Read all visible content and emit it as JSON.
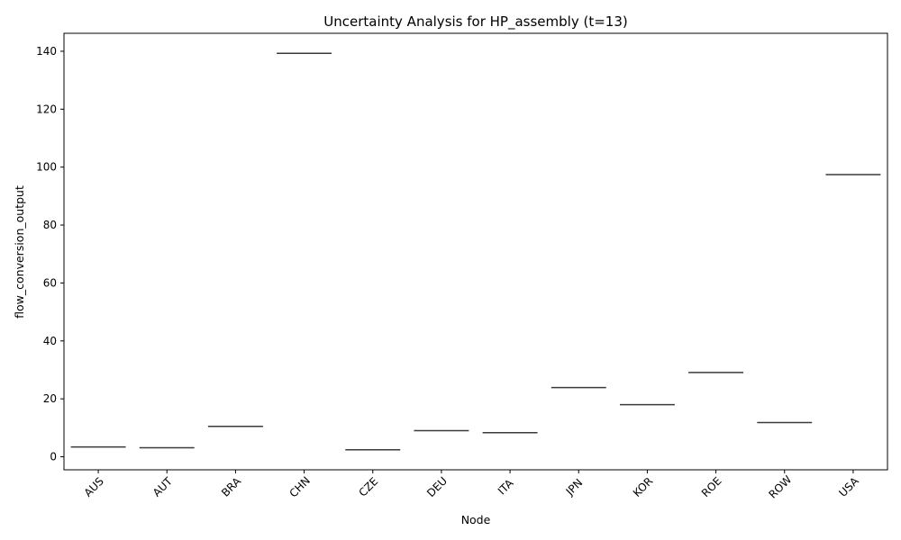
{
  "chart_data": {
    "type": "box",
    "title": "Uncertainty Analysis for HP_assembly (t=13)",
    "xlabel": "Node",
    "ylabel": "flow_conversion_output",
    "categories": [
      "AUS",
      "AUT",
      "BRA",
      "CHN",
      "CZE",
      "DEU",
      "ITA",
      "JPN",
      "KOR",
      "ROE",
      "ROW",
      "USA"
    ],
    "values": [
      3.4,
      3.1,
      10.5,
      139.3,
      2.4,
      9.0,
      8.3,
      23.9,
      18.0,
      29.1,
      11.8,
      97.4
    ],
    "yticks": [
      0,
      20,
      40,
      60,
      80,
      100,
      120,
      140
    ],
    "ylim": [
      -4.5,
      146.2
    ],
    "grid": false,
    "colors": {
      "median_line": "#3a3a3a",
      "axes": "#000000",
      "background": "#ffffff"
    }
  }
}
